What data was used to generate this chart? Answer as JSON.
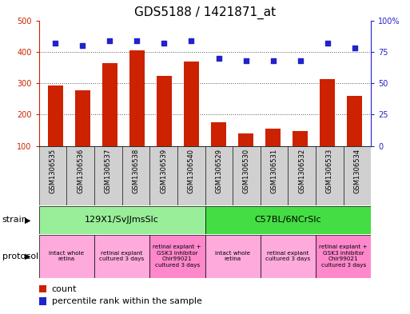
{
  "title": "GDS5188 / 1421871_at",
  "samples": [
    "GSM1306535",
    "GSM1306536",
    "GSM1306537",
    "GSM1306538",
    "GSM1306539",
    "GSM1306540",
    "GSM1306529",
    "GSM1306530",
    "GSM1306531",
    "GSM1306532",
    "GSM1306533",
    "GSM1306534"
  ],
  "counts": [
    293,
    278,
    363,
    405,
    323,
    370,
    175,
    140,
    155,
    147,
    312,
    260
  ],
  "percentiles": [
    82,
    80,
    84,
    84,
    82,
    84,
    70,
    68,
    68,
    68,
    82,
    78
  ],
  "ylim_left": [
    100,
    500
  ],
  "ylim_right": [
    0,
    100
  ],
  "yticks_left": [
    100,
    200,
    300,
    400,
    500
  ],
  "yticks_right": [
    0,
    25,
    50,
    75,
    100
  ],
  "bar_color": "#cc2200",
  "dot_color": "#2222cc",
  "bg_color": "#ffffff",
  "grid_color": "#555555",
  "left_axis_color": "#cc2200",
  "right_axis_color": "#2222cc",
  "strain_groups": [
    {
      "label": "129X1/SvJJmsSlc",
      "start": 0,
      "end": 6,
      "color": "#99ee99"
    },
    {
      "label": "C57BL/6NCrSlc",
      "start": 6,
      "end": 12,
      "color": "#44dd44"
    }
  ],
  "protocol_groups": [
    {
      "label": "intact whole\nretina",
      "start": 0,
      "end": 2,
      "color": "#ffaadd"
    },
    {
      "label": "retinal explant\ncultured 3 days",
      "start": 2,
      "end": 4,
      "color": "#ffaadd"
    },
    {
      "label": "retinal explant +\nGSK3 inhibitor\nChir99021\ncultured 3 days",
      "start": 4,
      "end": 6,
      "color": "#ff88cc"
    },
    {
      "label": "intact whole\nretina",
      "start": 6,
      "end": 8,
      "color": "#ffaadd"
    },
    {
      "label": "retinal explant\ncultured 3 days",
      "start": 8,
      "end": 10,
      "color": "#ffaadd"
    },
    {
      "label": "retinal explant +\nGSK3 inhibitor\nChir99021\ncultured 3 days",
      "start": 10,
      "end": 12,
      "color": "#ff88cc"
    }
  ],
  "sample_box_color": "#d0d0d0",
  "title_fontsize": 11,
  "tick_fontsize": 7,
  "annot_fontsize": 7,
  "legend_fontsize": 8
}
